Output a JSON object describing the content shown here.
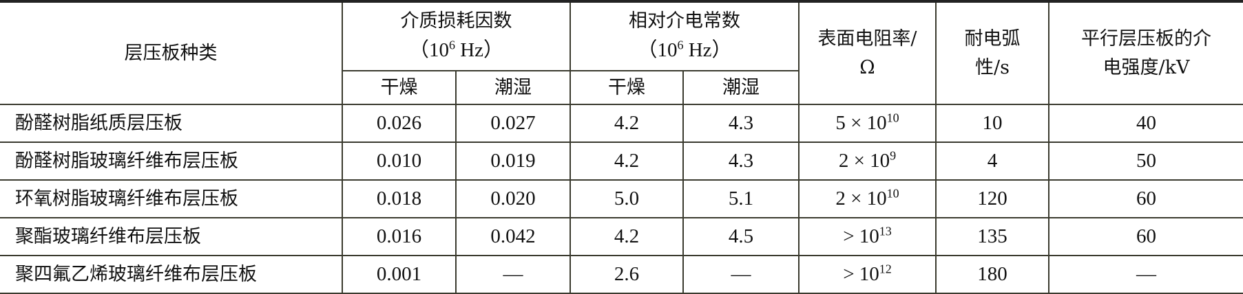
{
  "headers": {
    "type": "层压板种类",
    "loss_factor": "介质损耗因数",
    "loss_factor_unit": {
      "pre": "（10",
      "sup": "6",
      "post": " Hz）"
    },
    "permittivity": "相对介电常数",
    "permittivity_unit": {
      "pre": "（10",
      "sup": "6",
      "post": " Hz）"
    },
    "resistivity": "表面电阻率/Ω",
    "arc": "耐电弧性/s",
    "strength": "平行层压板的介电强度/kV",
    "dry": "干燥",
    "wet": "潮湿"
  },
  "rows": [
    {
      "name": "酚醛树脂纸质层压板",
      "loss_dry": "0.026",
      "loss_wet": "0.027",
      "perm_dry": "4.2",
      "perm_wet": "4.3",
      "res_pre": "5 × 10",
      "res_sup": "10",
      "arc": "10",
      "strength": "40"
    },
    {
      "name": "酚醛树脂玻璃纤维布层压板",
      "loss_dry": "0.010",
      "loss_wet": "0.019",
      "perm_dry": "4.2",
      "perm_wet": "4.3",
      "res_pre": "2 × 10",
      "res_sup": "9",
      "arc": "4",
      "strength": "50"
    },
    {
      "name": "环氧树脂玻璃纤维布层压板",
      "loss_dry": "0.018",
      "loss_wet": "0.020",
      "perm_dry": "5.0",
      "perm_wet": "5.1",
      "res_pre": "2 × 10",
      "res_sup": "10",
      "arc": "120",
      "strength": "60"
    },
    {
      "name": "聚酯玻璃纤维布层压板",
      "loss_dry": "0.016",
      "loss_wet": "0.042",
      "perm_dry": "4.2",
      "perm_wet": "4.5",
      "res_pre": "> 10",
      "res_sup": "13",
      "arc": "135",
      "strength": "60"
    },
    {
      "name": "聚四氟乙烯玻璃纤维布层压板",
      "loss_dry": "0.001",
      "loss_wet": "—",
      "perm_dry": "2.6",
      "perm_wet": "—",
      "res_pre": "> 10",
      "res_sup": "12",
      "arc": "180",
      "strength": "—"
    }
  ]
}
